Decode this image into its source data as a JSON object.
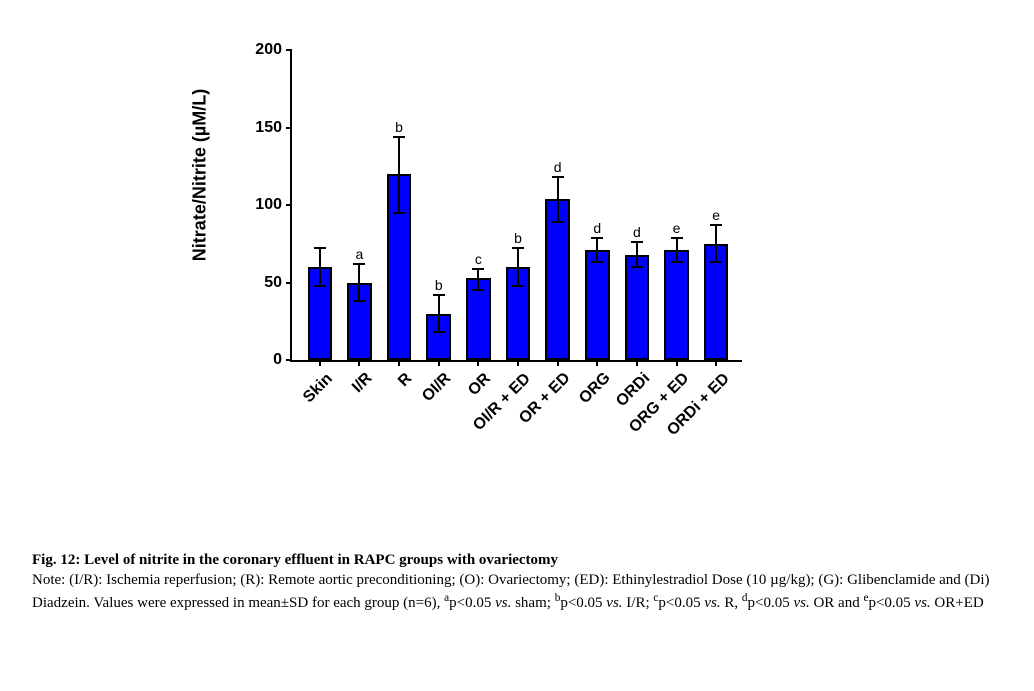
{
  "chart": {
    "type": "bar",
    "ylabel": "Nitrate/Nitrite (µM/L)",
    "label_fontsize": 18,
    "ylim": [
      0,
      200
    ],
    "ytick_step": 50,
    "yticks": [
      0,
      50,
      100,
      150,
      200
    ],
    "background_color": "#ffffff",
    "axis_color": "#000000",
    "bar_color": "#0000ff",
    "bar_border_color": "#000000",
    "bar_width": 0.62,
    "error_color": "#000000",
    "categories": [
      "Skin",
      "I/R",
      "R",
      "OI/R",
      "OR",
      "OI/R + ED",
      "OR + ED",
      "ORG",
      "ORDi",
      "ORG + ED",
      "ORDi + ED"
    ],
    "values": [
      60,
      50,
      120,
      30,
      53,
      60,
      104,
      71,
      68,
      71,
      75
    ],
    "err_upper": [
      12,
      12,
      24,
      12,
      6,
      12,
      14,
      8,
      8,
      8,
      12
    ],
    "err_lower": [
      12,
      12,
      25,
      12,
      8,
      12,
      15,
      8,
      8,
      8,
      12
    ],
    "sig_labels": [
      "",
      "a",
      "b",
      "b",
      "c",
      "b",
      "d",
      "d",
      "d",
      "e",
      "e"
    ],
    "sig_fontsize": 14,
    "xlabel_rotation": -45,
    "xlabel_fontsize": 16
  },
  "caption": {
    "fig_title": "Fig. 12: Level of nitrite in the coronary effluent in RAPC groups with ovariectomy",
    "note_label": "Note: ",
    "defs": "(I/R): Ischemia reperfusion; (R): Remote aortic preconditioning; (O): Ovariectomy; (ED): Ethinylestradiol Dose (10 µg/kg); (G): Glibenclamide and (Di) Diadzein. Values were expressed in mean±SD for each group (n=6), ",
    "a_sup": "a",
    "a_txt": "p<0.05 ",
    "vs": "vs.",
    "a_after": " sham; ",
    "b_sup": "b",
    "b_txt": "p<0.05 ",
    "b_after": " I/R; ",
    "c_sup": "c",
    "c_txt": "p<0.05 ",
    "c_after": " R, ",
    "d_sup": "d",
    "d_txt": "p<0.05 ",
    "d_after": " OR and ",
    "e_sup": "e",
    "e_txt": "p<0.05 ",
    "e_after": " OR+ED"
  }
}
